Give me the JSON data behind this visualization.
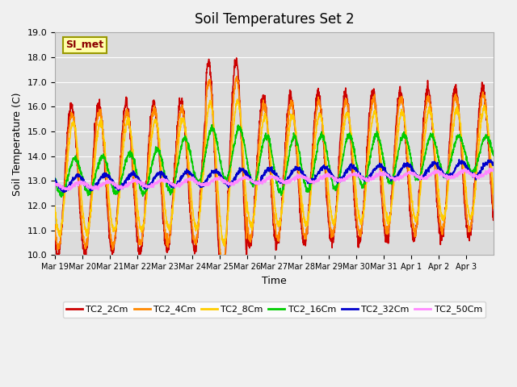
{
  "title": "Soil Temperatures Set 2",
  "xlabel": "Time",
  "ylabel": "Soil Temperature (C)",
  "ylim": [
    10.0,
    19.0
  ],
  "yticks": [
    10.0,
    11.0,
    12.0,
    13.0,
    14.0,
    15.0,
    16.0,
    17.0,
    18.0,
    19.0
  ],
  "xtick_labels": [
    "Mar 19",
    "Mar 20",
    "Mar 21",
    "Mar 22",
    "Mar 23",
    "Mar 24",
    "Mar 25",
    "Mar 26",
    "Mar 27",
    "Mar 28",
    "Mar 29",
    "Mar 30",
    "Mar 31",
    "Apr 1",
    "Apr 2",
    "Apr 3"
  ],
  "series_labels": [
    "TC2_2Cm",
    "TC2_4Cm",
    "TC2_8Cm",
    "TC2_16Cm",
    "TC2_32Cm",
    "TC2_50Cm"
  ],
  "series_colors": [
    "#cc0000",
    "#ff8800",
    "#ffcc00",
    "#00cc00",
    "#0000cc",
    "#ff88ff"
  ],
  "annotation_text": "SI_met",
  "fig_bg_color": "#f0f0f0",
  "ax_bg_color": "#dcdcdc",
  "grid_color": "#ffffff",
  "linewidth": 1.2
}
